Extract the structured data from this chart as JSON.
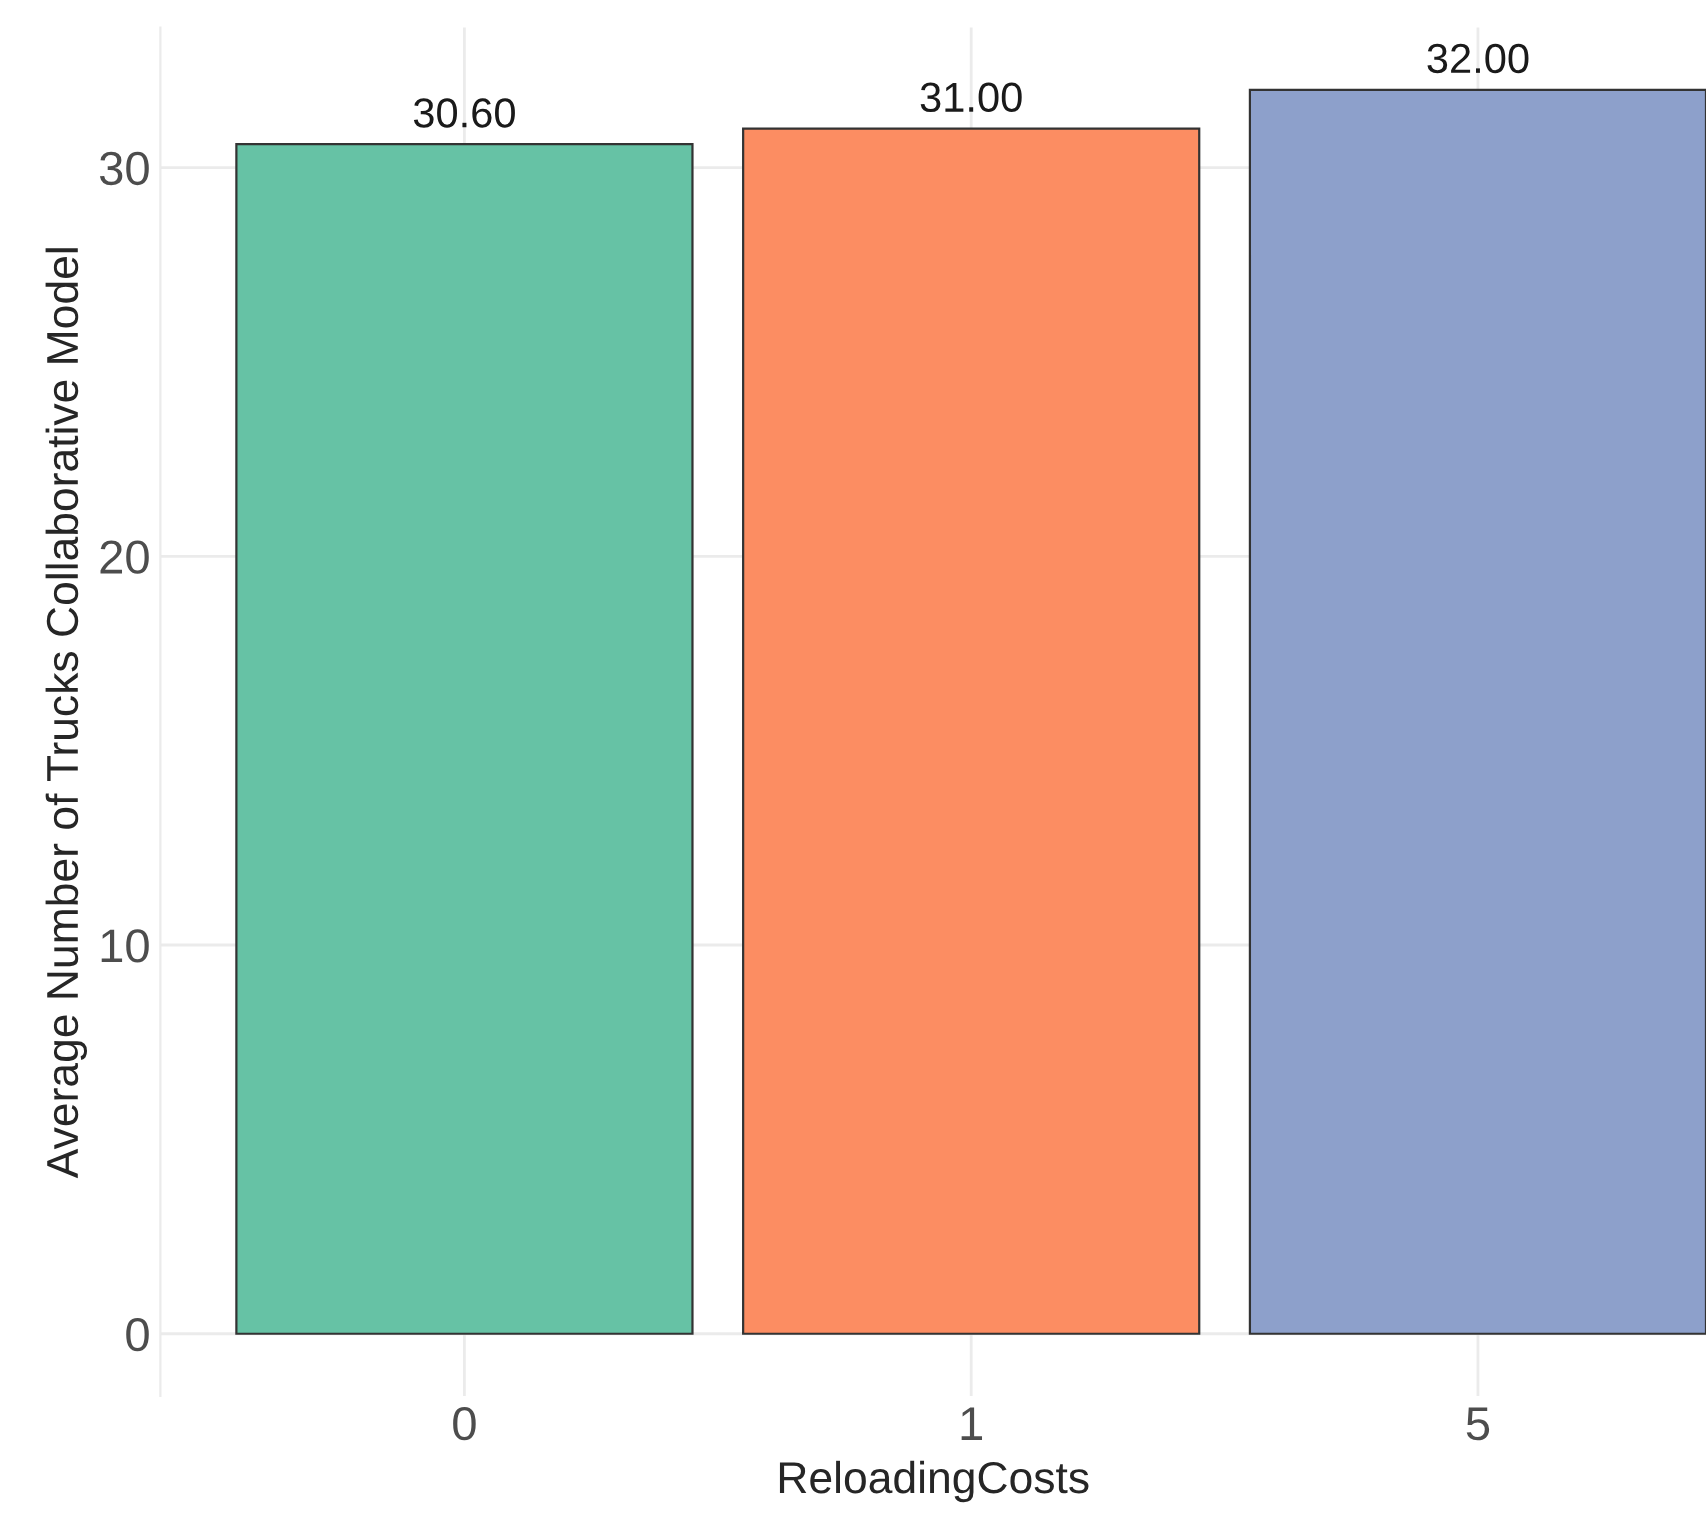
{
  "chart_data": {
    "type": "bar",
    "xlabel": "ReloadingCosts",
    "ylabel": "Average Number of Trucks Collaborative Model",
    "categories": [
      "0",
      "1",
      "5"
    ],
    "values": [
      30.6,
      31.0,
      32.0
    ],
    "colors": [
      "#66c2a5",
      "#fc8d62",
      "#8da0cb"
    ],
    "value_labels": [
      "30.60",
      "31.00",
      "32.00"
    ],
    "ylim": [
      -1.6,
      33.6
    ],
    "yticks": [
      0,
      10,
      20,
      30
    ],
    "grid": true,
    "legend": false
  }
}
